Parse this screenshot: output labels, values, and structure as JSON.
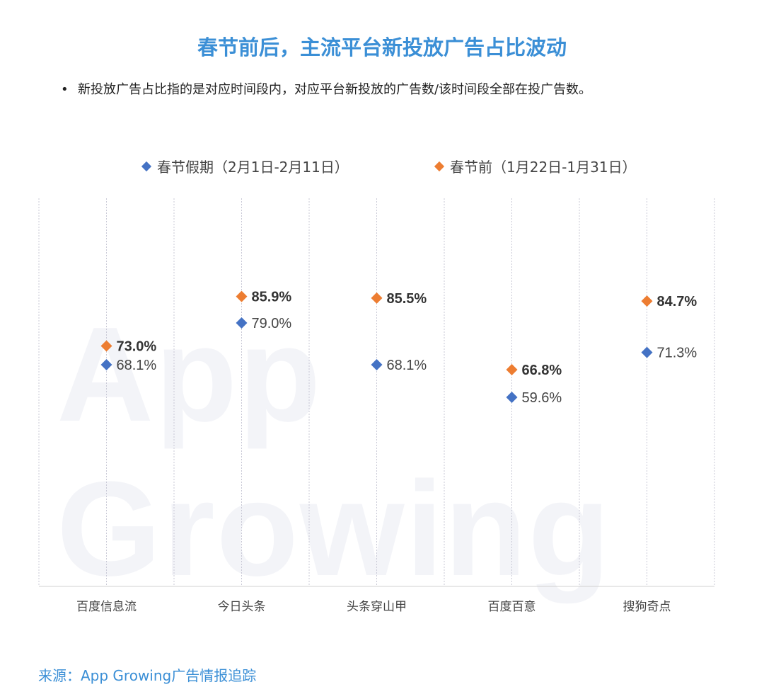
{
  "title": "春节前后，主流平台新投放广告占比波动",
  "note": "新投放广告占比指的是对应时间段内，对应平台新投放的广告数/该时间段全部在投广告数。",
  "watermark": "App Growing",
  "source": "来源：App Growing广告情报追踪",
  "colors": {
    "holiday": "#4472c4",
    "pre": "#ed7d31",
    "title": "#3b8fd6"
  },
  "chart_data": {
    "type": "scatter",
    "categories": [
      "百度信息流",
      "今日头条",
      "头条穿山甲",
      "百度百意",
      "搜狗奇点"
    ],
    "series": [
      {
        "name": "春节假期（2月1日-2月11日）",
        "values": [
          68.1,
          79.0,
          68.1,
          59.6,
          71.3
        ],
        "labels": [
          "68.1%",
          "79.0%",
          "68.1%",
          "59.6%",
          "71.3%"
        ],
        "bold": false
      },
      {
        "name": "春节前（1月22日-1月31日）",
        "values": [
          73.0,
          85.9,
          85.5,
          66.8,
          84.7
        ],
        "labels": [
          "73.0%",
          "85.9%",
          "85.5%",
          "66.8%",
          "84.7%"
        ],
        "bold": true
      }
    ],
    "ylim": [
      0,
      100
    ],
    "grid": "vertical-dotted",
    "legend": "top"
  }
}
